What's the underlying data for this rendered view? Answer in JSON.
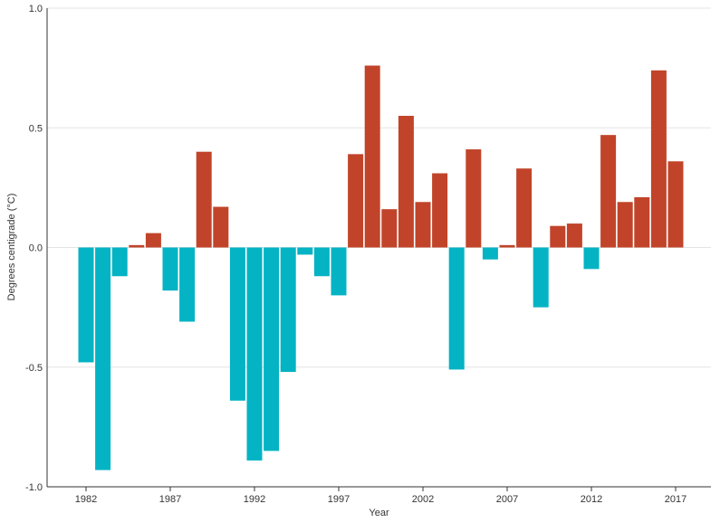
{
  "chart_data": {
    "type": "bar",
    "title": "",
    "xlabel": "Year",
    "ylabel": "Degrees centigrade (°C)",
    "ylim": [
      -1.0,
      1.0
    ],
    "yticks": [
      -1.0,
      -0.5,
      0.0,
      0.5,
      1.0
    ],
    "ytick_labels": [
      "-1.0",
      "-0.5",
      "0.0",
      "0.5",
      "1.0"
    ],
    "xticks": [
      1982,
      1987,
      1992,
      1997,
      2002,
      2007,
      2012,
      2017
    ],
    "grid": "horizontal",
    "colors": {
      "positive": "#c1442a",
      "negative": "#04b3c4"
    },
    "years": [
      1982,
      1983,
      1984,
      1985,
      1986,
      1987,
      1988,
      1989,
      1990,
      1991,
      1992,
      1993,
      1994,
      1995,
      1996,
      1997,
      1998,
      1999,
      2000,
      2001,
      2002,
      2003,
      2004,
      2005,
      2006,
      2007,
      2008,
      2009,
      2010,
      2011,
      2012,
      2013,
      2014,
      2015,
      2016,
      2017
    ],
    "values": [
      -0.48,
      -0.93,
      -0.12,
      0.01,
      0.06,
      -0.18,
      -0.31,
      0.4,
      0.17,
      -0.64,
      -0.89,
      -0.85,
      -0.52,
      -0.03,
      -0.12,
      -0.2,
      0.39,
      0.76,
      0.16,
      0.55,
      0.19,
      0.31,
      -0.51,
      0.41,
      -0.05,
      0.01,
      0.33,
      -0.25,
      0.09,
      0.1,
      -0.09,
      0.47,
      0.19,
      0.21,
      0.74,
      0.36
    ]
  }
}
